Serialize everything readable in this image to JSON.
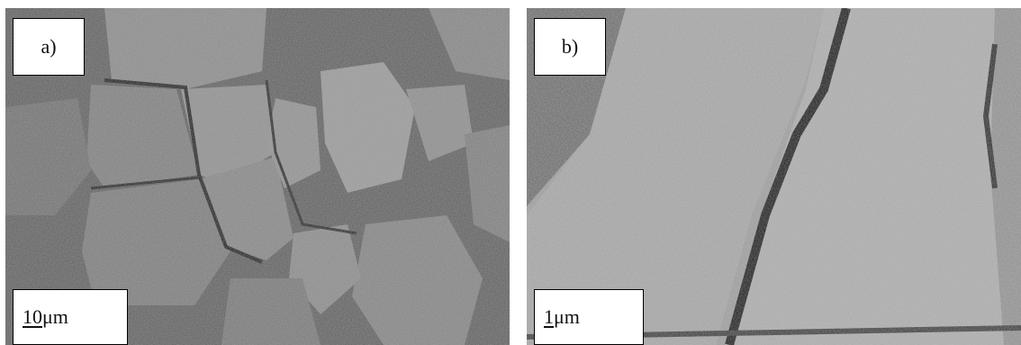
{
  "panels": [
    {
      "label": "a)",
      "scale_value": "10",
      "scale_unit": "μm"
    },
    {
      "label": "b)",
      "scale_value": "1",
      "scale_unit": "μm"
    }
  ],
  "colors": {
    "background": "#ffffff",
    "label_box": "#ffffff",
    "border": "#000000"
  }
}
